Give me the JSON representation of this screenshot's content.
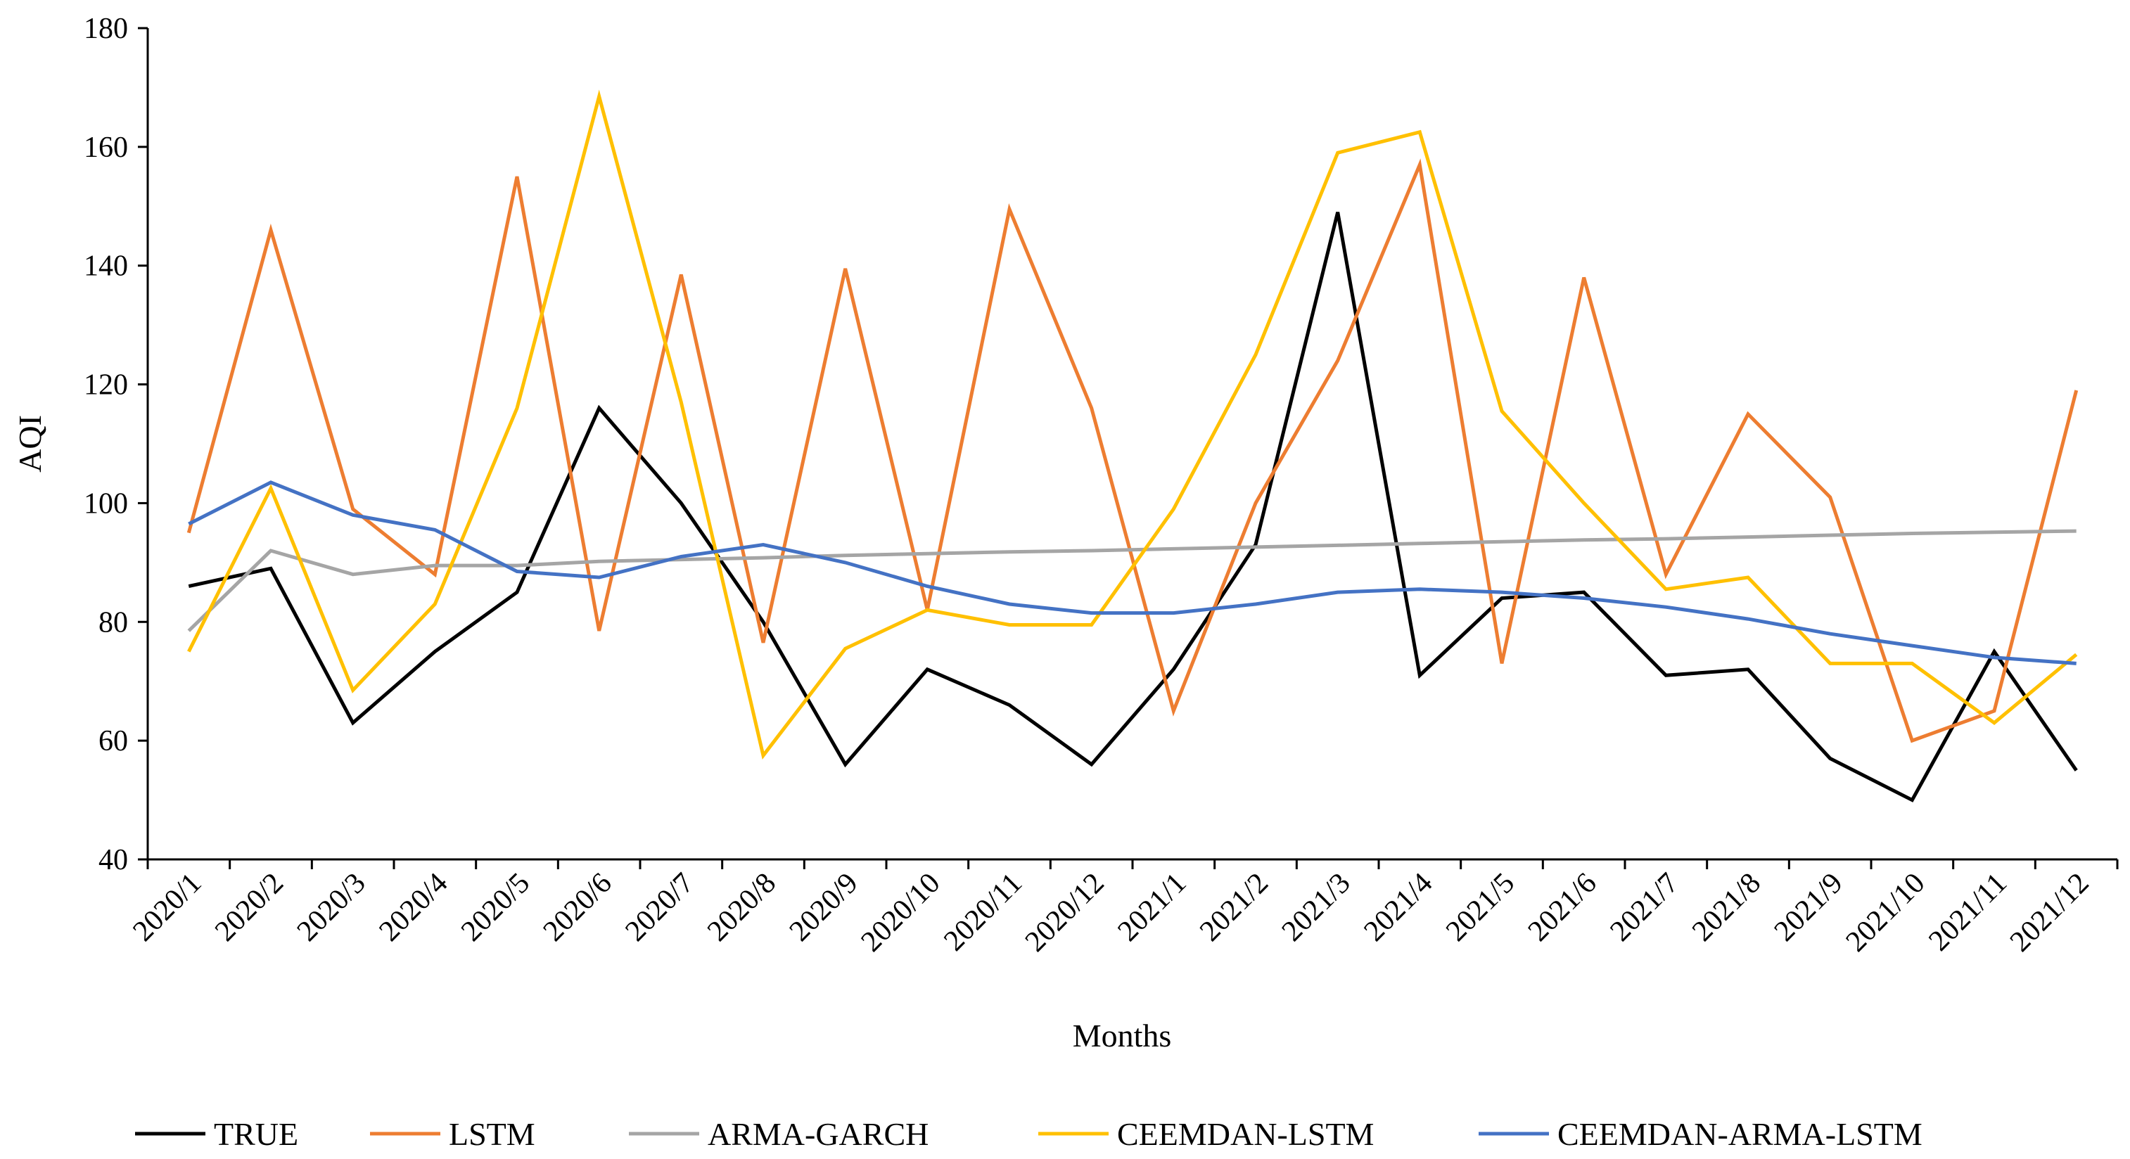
{
  "chart_data": {
    "type": "line",
    "title": "",
    "xlabel": "Months",
    "ylabel": "AQI",
    "ylim": [
      40,
      180
    ],
    "yticks": [
      40,
      60,
      80,
      100,
      120,
      140,
      160,
      180
    ],
    "grid": false,
    "legend_position": "bottom",
    "categories": [
      "2020/1",
      "2020/2",
      "2020/3",
      "2020/4",
      "2020/5",
      "2020/6",
      "2020/7",
      "2020/8",
      "2020/9",
      "2020/10",
      "2020/11",
      "2020/12",
      "2021/1",
      "2021/2",
      "2021/3",
      "2021/4",
      "2021/5",
      "2021/6",
      "2021/7",
      "2021/8",
      "2021/9",
      "2021/10",
      "2021/11",
      "2021/12"
    ],
    "series": [
      {
        "name": "TRUE",
        "color": "#000000",
        "values": [
          86,
          89,
          63,
          75,
          85,
          116,
          100,
          80,
          56,
          72,
          66,
          56,
          72,
          93,
          149,
          71,
          84,
          85,
          71,
          72,
          57,
          50,
          75,
          55
        ]
      },
      {
        "name": "LSTM",
        "color": "#ED7D31",
        "values": [
          95,
          146,
          99,
          88,
          155,
          78.5,
          138.5,
          76.5,
          139.5,
          82,
          149.5,
          116,
          65,
          100,
          124,
          157,
          73,
          138,
          88,
          115,
          101,
          60,
          65,
          119
        ]
      },
      {
        "name": "ARMA-GARCH",
        "color": "#A5A5A5",
        "values": [
          78.5,
          92,
          88,
          89.5,
          89.5,
          90.2,
          90.5,
          90.8,
          91.2,
          91.5,
          91.8,
          92,
          92.3,
          92.6,
          92.9,
          93.2,
          93.5,
          93.8,
          94,
          94.3,
          94.6,
          94.9,
          95.1,
          95.3
        ]
      },
      {
        "name": "CEEMDAN-LSTM",
        "color": "#FFC000",
        "values": [
          75,
          102.5,
          68.5,
          83,
          116,
          168.5,
          117,
          57.5,
          75.5,
          82,
          79.5,
          79.5,
          99,
          125,
          159,
          162.5,
          115.5,
          100,
          85.5,
          87.5,
          73,
          73,
          63,
          74.5
        ]
      },
      {
        "name": "CEEMDAN-ARMA-LSTM",
        "color": "#4472C4",
        "values": [
          96.5,
          103.5,
          98,
          95.5,
          88.5,
          87.5,
          91,
          93,
          90,
          86,
          83,
          81.5,
          81.5,
          83,
          85,
          85.5,
          85,
          84,
          82.5,
          80.5,
          78,
          76,
          74,
          73
        ]
      }
    ]
  }
}
